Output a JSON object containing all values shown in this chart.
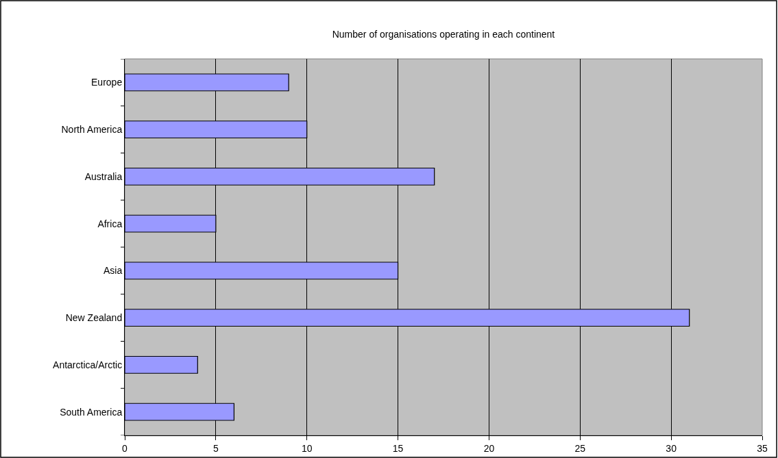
{
  "chart_data": {
    "type": "bar",
    "orientation": "horizontal",
    "title": "Number of organisations operating in each continent",
    "categories": [
      "Europe",
      "North America",
      "Australia",
      "Africa",
      "Asia",
      "New Zealand",
      "Antarctica/Arctic",
      "South America"
    ],
    "values": [
      9,
      10,
      17,
      5,
      15,
      31,
      4,
      6
    ],
    "color": "#9999ff",
    "xlim": [
      0,
      35
    ],
    "xticks": [
      0,
      5,
      10,
      15,
      20,
      25,
      30,
      35
    ],
    "grid": "x"
  }
}
